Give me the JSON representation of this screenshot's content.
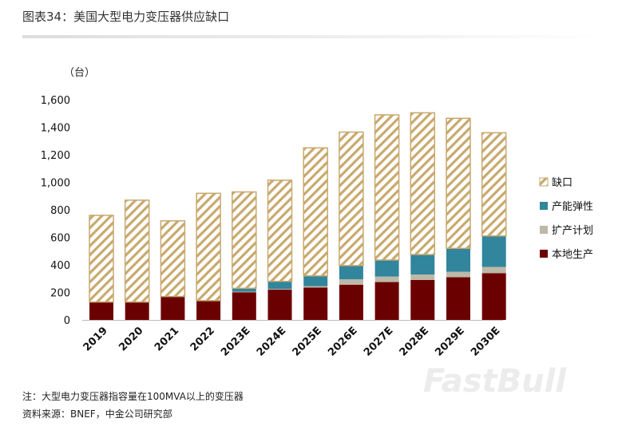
{
  "title": "图表34：美国大型电力变压器供应缺口",
  "chart_data": {
    "type": "bar",
    "stacked": true,
    "ylabel": "（台）",
    "ylim": [
      0,
      1600
    ],
    "yticks": [
      "0",
      "200",
      "400",
      "600",
      "800",
      "1,000",
      "1,200",
      "1,400",
      "1,600"
    ],
    "categories": [
      "2019",
      "2020",
      "2021",
      "2022",
      "2023E",
      "2024E",
      "2025E",
      "2026E",
      "2027E",
      "2028E",
      "2029E",
      "2030E"
    ],
    "series": [
      {
        "name": "本地生产",
        "color": "#6b0000",
        "values": [
          130,
          130,
          170,
          140,
          200,
          220,
          235,
          255,
          275,
          290,
          310,
          340
        ]
      },
      {
        "name": "扩产计划",
        "color": "#bdb8a8",
        "values": [
          0,
          0,
          0,
          0,
          5,
          5,
          10,
          40,
          40,
          40,
          40,
          45
        ]
      },
      {
        "name": "产能弹性",
        "color": "#31859c",
        "values": [
          0,
          0,
          0,
          0,
          25,
          55,
          75,
          100,
          120,
          145,
          170,
          225
        ]
      },
      {
        "name": "缺口",
        "color": "#c8a96e",
        "pattern": "diagonal-hatch",
        "values": [
          630,
          740,
          550,
          780,
          700,
          735,
          930,
          970,
          1055,
          1030,
          945,
          750
        ]
      }
    ],
    "legend_order": [
      "缺口",
      "产能弹性",
      "扩产计划",
      "本地生产"
    ],
    "legend_position": "right",
    "grid": false
  },
  "notes": [
    "注：大型电力变压器指容量在100MVA以上的变压器",
    "资料来源：BNEF，中金公司研究部"
  ],
  "watermark": "FastBull"
}
